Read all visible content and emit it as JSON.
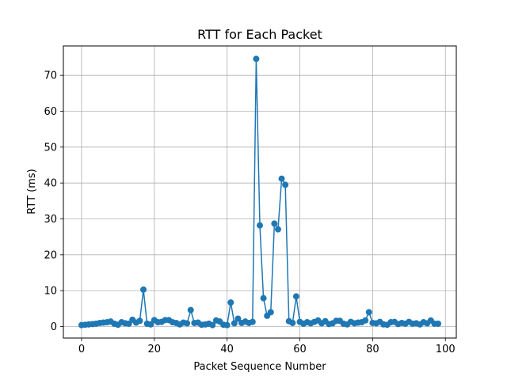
{
  "chart_data": {
    "type": "line",
    "title": "RTT for Each Packet",
    "xlabel": "Packet Sequence Number",
    "ylabel": "RTT (ms)",
    "xlim": [
      -5,
      103
    ],
    "ylim": [
      -3.2,
      78.2
    ],
    "x_ticks": [
      0,
      20,
      40,
      60,
      80,
      100
    ],
    "y_ticks": [
      0,
      10,
      20,
      30,
      40,
      50,
      60,
      70
    ],
    "grid": true,
    "marker": "circle",
    "color": "#1f77b4",
    "series": [
      {
        "x": [
          0,
          1,
          2,
          3,
          4,
          5,
          6,
          7,
          8,
          9,
          10,
          11,
          12,
          13,
          14,
          15,
          16,
          17,
          18,
          19,
          20,
          21,
          22,
          23,
          24,
          25,
          26,
          27,
          28,
          29,
          30,
          31,
          32,
          33,
          34,
          35,
          36,
          37,
          38,
          39,
          40,
          41,
          42,
          43,
          44,
          45,
          46,
          47,
          48,
          49,
          50,
          51,
          52,
          53,
          54,
          55,
          56,
          57,
          58,
          59,
          60,
          61,
          62,
          63,
          64,
          65,
          66,
          67,
          68,
          69,
          70,
          71,
          72,
          73,
          74,
          75,
          76,
          77,
          78,
          79,
          80,
          81,
          82,
          83,
          84,
          85,
          86,
          87,
          88,
          89,
          90,
          91,
          92,
          93,
          94,
          95,
          96,
          97,
          98
        ],
        "y": [
          0.4,
          0.5,
          0.6,
          0.7,
          0.8,
          1.0,
          1.1,
          1.2,
          1.4,
          0.8,
          0.5,
          1.2,
          0.9,
          0.8,
          1.9,
          1.1,
          1.6,
          10.3,
          0.8,
          0.6,
          1.8,
          1.2,
          1.3,
          1.8,
          1.8,
          1.2,
          1.0,
          0.6,
          1.1,
          0.9,
          4.6,
          1.0,
          1.1,
          0.5,
          0.6,
          0.8,
          0.4,
          1.7,
          1.4,
          0.5,
          0.4,
          6.7,
          0.9,
          2.2,
          1.0,
          1.4,
          1.0,
          1.3,
          74.6,
          28.2,
          7.9,
          3.0,
          4.0,
          28.7,
          27.1,
          41.2,
          39.5,
          1.5,
          1.0,
          8.4,
          1.3,
          0.8,
          1.2,
          0.9,
          1.3,
          1.7,
          0.9,
          1.5,
          0.7,
          0.9,
          1.6,
          1.6,
          0.8,
          0.6,
          1.3,
          0.9,
          1.1,
          1.2,
          1.7,
          4.0,
          1.0,
          0.9,
          1.3,
          0.6,
          0.5,
          1.2,
          1.3,
          0.7,
          1.0,
          0.8,
          1.3,
          0.8,
          0.9,
          0.6,
          1.2,
          0.9,
          1.7,
          0.8,
          0.8
        ]
      }
    ]
  }
}
